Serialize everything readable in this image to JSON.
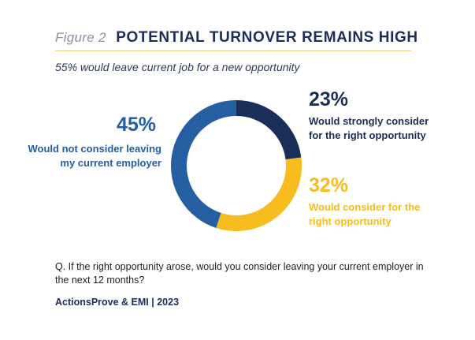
{
  "header": {
    "figure_label": "Figure 2",
    "title": "POTENTIAL TURNOVER REMAINS HIGH",
    "subtitle": "55% would leave current job for a new opportunity"
  },
  "chart_data": {
    "type": "pie",
    "donut": true,
    "slices": [
      {
        "label": "Would strongly consider for the right opportunity",
        "value": 23,
        "display": "23%",
        "color": "#1b2e57"
      },
      {
        "label": "Would consider for the right opportunity",
        "value": 32,
        "display": "32%",
        "color": "#f7bd1f"
      },
      {
        "label": "Would not consider leaving my current employer",
        "value": 45,
        "display": "45%",
        "color": "#265ea2"
      }
    ]
  },
  "labels": {
    "strong_pct": "23%",
    "strong_line1": "Would strongly consider",
    "strong_line2": "for the right opportunity",
    "consider_pct": "32%",
    "consider_line1": "Would consider for the",
    "consider_line2": "right opportunity",
    "not_pct": "45%",
    "not_line1": "Would not consider leaving",
    "not_line2": "my current employer"
  },
  "footer": {
    "question": "Q. If the right opportunity arose, would you consider leaving your current employer in the next 12 months?",
    "source": "ActionsProve & EMI | 2023"
  }
}
